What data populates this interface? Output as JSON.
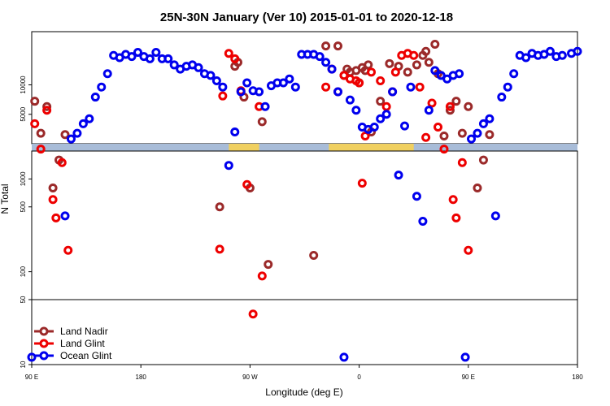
{
  "chart_data": {
    "type": "scatter",
    "title": "25N-30N January (Ver 10)   2015-01-01 to 2020-12-18",
    "xlabel": "Longitude (deg E)",
    "ylabel": "N Total",
    "xlim": [
      90,
      270
    ],
    "x_ticks": [
      {
        "value": 90,
        "label": "90 E"
      },
      {
        "value": 126,
        "label": "180"
      },
      {
        "value": 162,
        "label": "90 W"
      },
      {
        "value": 198,
        "label": "0"
      },
      {
        "value": 234,
        "label": "90 E"
      },
      {
        "value": 270,
        "label": "180"
      }
    ],
    "panels": [
      {
        "name": "upper",
        "scale": "log",
        "ylim": [
          2500,
          35000
        ],
        "ticks": [
          5000,
          10000
        ]
      },
      {
        "name": "middle",
        "scale": "log",
        "ylim": [
          50,
          2000
        ],
        "ticks": [
          100,
          500,
          1000
        ]
      },
      {
        "name": "lower",
        "scale": "log",
        "ylim": [
          10,
          50
        ],
        "ticks": [
          10,
          50
        ]
      }
    ],
    "map_band": {
      "land_color": "#f0d060",
      "ocean_color": "#a8bcd8"
    },
    "series": [
      {
        "name": "Land Nadir",
        "color": "#9b2a2a",
        "points": [
          [
            91,
            6800
          ],
          [
            93,
            3200
          ],
          [
            95,
            6000
          ],
          [
            97,
            800
          ],
          [
            99,
            1600
          ],
          [
            101,
            3100
          ],
          [
            152,
            500
          ],
          [
            157,
            15500
          ],
          [
            158,
            17000
          ],
          [
            160,
            7500
          ],
          [
            162,
            800
          ],
          [
            166,
            4200
          ],
          [
            168,
            120
          ],
          [
            183,
            150
          ],
          [
            187,
            25000
          ],
          [
            191,
            25000
          ],
          [
            193,
            12500
          ],
          [
            194,
            14500
          ],
          [
            195,
            13500
          ],
          [
            197,
            14000
          ],
          [
            198,
            10500
          ],
          [
            199,
            15000
          ],
          [
            200,
            14000
          ],
          [
            201,
            16000
          ],
          [
            202,
            3300
          ],
          [
            205,
            6800
          ],
          [
            208,
            16500
          ],
          [
            211,
            15500
          ],
          [
            214,
            13500
          ],
          [
            217,
            16000
          ],
          [
            219,
            20000
          ],
          [
            220,
            22000
          ],
          [
            221,
            17000
          ],
          [
            223,
            26000
          ],
          [
            224,
            13000
          ],
          [
            226,
            3000
          ],
          [
            228,
            5500
          ],
          [
            230,
            6800
          ],
          [
            232,
            3200
          ],
          [
            234,
            6000
          ],
          [
            237,
            800
          ],
          [
            239,
            1600
          ],
          [
            241,
            3100
          ]
        ]
      },
      {
        "name": "Land Glint",
        "color": "#ee0000",
        "points": [
          [
            91,
            4000
          ],
          [
            93,
            2100
          ],
          [
            95,
            5500
          ],
          [
            97,
            600
          ],
          [
            98,
            380
          ],
          [
            100,
            1500
          ],
          [
            102,
            170
          ],
          [
            152,
            175
          ],
          [
            153,
            7700
          ],
          [
            155,
            21000
          ],
          [
            157,
            18500
          ],
          [
            159,
            8700
          ],
          [
            161,
            870
          ],
          [
            163,
            35
          ],
          [
            165,
            6000
          ],
          [
            166,
            90
          ],
          [
            187,
            9500
          ],
          [
            189,
            14500
          ],
          [
            191,
            8500
          ],
          [
            193,
            12500
          ],
          [
            195,
            11500
          ],
          [
            197,
            11000
          ],
          [
            198,
            10500
          ],
          [
            199,
            900
          ],
          [
            200,
            3000
          ],
          [
            202,
            13500
          ],
          [
            205,
            11000
          ],
          [
            207,
            6000
          ],
          [
            209,
            8500
          ],
          [
            210,
            13500
          ],
          [
            212,
            20000
          ],
          [
            214,
            21000
          ],
          [
            216,
            20000
          ],
          [
            218,
            9500
          ],
          [
            220,
            2900
          ],
          [
            222,
            6500
          ],
          [
            224,
            3700
          ],
          [
            226,
            2100
          ],
          [
            228,
            6000
          ],
          [
            229,
            600
          ],
          [
            230,
            380
          ],
          [
            232,
            1500
          ],
          [
            234,
            170
          ]
        ]
      },
      {
        "name": "Ocean Glint",
        "color": "#0000ee",
        "points": [
          [
            90,
            12
          ],
          [
            101,
            400
          ],
          [
            103,
            2800
          ],
          [
            105,
            3200
          ],
          [
            107,
            4000
          ],
          [
            109,
            4500
          ],
          [
            111,
            7500
          ],
          [
            113,
            9500
          ],
          [
            115,
            13000
          ],
          [
            117,
            20000
          ],
          [
            119,
            19000
          ],
          [
            121,
            20500
          ],
          [
            123,
            19500
          ],
          [
            125,
            21500
          ],
          [
            127,
            19500
          ],
          [
            129,
            18500
          ],
          [
            131,
            21500
          ],
          [
            133,
            18500
          ],
          [
            135,
            18500
          ],
          [
            137,
            16000
          ],
          [
            139,
            14500
          ],
          [
            141,
            15500
          ],
          [
            143,
            16000
          ],
          [
            145,
            15000
          ],
          [
            147,
            13000
          ],
          [
            149,
            12500
          ],
          [
            151,
            11000
          ],
          [
            153,
            9500
          ],
          [
            155,
            1400
          ],
          [
            157,
            3300
          ],
          [
            159,
            8500
          ],
          [
            161,
            10500
          ],
          [
            163,
            8700
          ],
          [
            165,
            8500
          ],
          [
            167,
            6000
          ],
          [
            169,
            9800
          ],
          [
            171,
            10500
          ],
          [
            173,
            10500
          ],
          [
            175,
            11500
          ],
          [
            177,
            9500
          ],
          [
            179,
            20500
          ],
          [
            181,
            20500
          ],
          [
            183,
            20500
          ],
          [
            185,
            19500
          ],
          [
            187,
            17000
          ],
          [
            189,
            14500
          ],
          [
            191,
            8500
          ],
          [
            193,
            12
          ],
          [
            195,
            7000
          ],
          [
            197,
            5500
          ],
          [
            199,
            3700
          ],
          [
            201,
            3500
          ],
          [
            203,
            3700
          ],
          [
            205,
            4500
          ],
          [
            207,
            5000
          ],
          [
            209,
            8500
          ],
          [
            211,
            1100
          ],
          [
            213,
            3800
          ],
          [
            215,
            9500
          ],
          [
            217,
            650
          ],
          [
            219,
            350
          ],
          [
            221,
            5500
          ],
          [
            223,
            14000
          ],
          [
            225,
            12500
          ],
          [
            227,
            11500
          ],
          [
            229,
            12500
          ],
          [
            231,
            13000
          ],
          [
            233,
            12
          ],
          [
            235,
            2800
          ],
          [
            237,
            3200
          ],
          [
            239,
            4000
          ],
          [
            241,
            4500
          ],
          [
            243,
            400
          ],
          [
            245,
            7500
          ],
          [
            247,
            9500
          ],
          [
            249,
            13000
          ],
          [
            251,
            20000
          ],
          [
            253,
            19000
          ],
          [
            255,
            21000
          ],
          [
            257,
            20000
          ],
          [
            259,
            20500
          ],
          [
            261,
            22000
          ],
          [
            263,
            19500
          ],
          [
            265,
            20000
          ],
          [
            268,
            21000
          ],
          [
            270,
            22000
          ]
        ]
      }
    ],
    "legend": {
      "position": "bottom-left"
    }
  }
}
